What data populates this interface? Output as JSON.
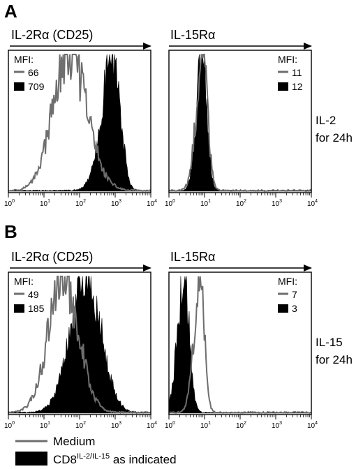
{
  "figure": {
    "legend": {
      "medium": "Medium",
      "treated_prefix": "CD8",
      "treated_sup": "IL-2/IL-15",
      "treated_suffix": " as indicated",
      "colors": {
        "medium": "#6e6e6e",
        "treated": "#000000"
      }
    }
  },
  "chart_data": [
    {
      "type": "area",
      "panel": "A",
      "marker": "IL-2Rα (CD25)",
      "condition": [
        "IL-2",
        "for 24h"
      ],
      "xscale": "log",
      "xlim": [
        1,
        10000
      ],
      "xticks": [
        "10",
        "10",
        "10",
        "10",
        "10"
      ],
      "xtick_exp": [
        "0",
        "1",
        "2",
        "3",
        "4"
      ],
      "mfi_title": "MFI:",
      "series": [
        {
          "name": "Medium",
          "mfi": "66",
          "peak_log": 1.7,
          "width_log": 0.45,
          "skew": 0.9,
          "fill": false
        },
        {
          "name": "CD8 IL-2/IL-15",
          "mfi": "709",
          "peak_log": 2.95,
          "width_log": 0.32,
          "skew": 1.6,
          "fill": true
        }
      ],
      "mfi_position": "top-left"
    },
    {
      "type": "area",
      "panel": "A",
      "marker": "IL-15Rα",
      "condition": [
        "IL-2",
        "for 24h"
      ],
      "xscale": "log",
      "xlim": [
        1,
        10000
      ],
      "xticks": [
        "10",
        "10",
        "10",
        "10",
        "10"
      ],
      "xtick_exp": [
        "0",
        "1",
        "2",
        "3",
        "4"
      ],
      "mfi_title": "MFI:",
      "series": [
        {
          "name": "Medium",
          "mfi": "11",
          "peak_log": 0.95,
          "width_log": 0.18,
          "skew": 1.3,
          "fill": false
        },
        {
          "name": "CD8 IL-2/IL-15",
          "mfi": "12",
          "peak_log": 0.93,
          "width_log": 0.16,
          "skew": 1.2,
          "fill": true
        }
      ],
      "mfi_position": "top-right"
    },
    {
      "type": "area",
      "panel": "B",
      "marker": "IL-2Rα (CD25)",
      "condition": [
        "IL-15",
        "for 24h"
      ],
      "xscale": "log",
      "xlim": [
        1,
        10000
      ],
      "xticks": [
        "10",
        "10",
        "10",
        "10",
        "10"
      ],
      "xtick_exp": [
        "0",
        "1",
        "2",
        "3",
        "4"
      ],
      "mfi_title": "MFI:",
      "series": [
        {
          "name": "Medium",
          "mfi": "49",
          "peak_log": 1.55,
          "width_log": 0.42,
          "skew": 1.0,
          "fill": false
        },
        {
          "name": "CD8 IL-2/IL-15",
          "mfi": "185",
          "peak_log": 2.2,
          "width_log": 0.45,
          "skew": 1.1,
          "fill": true
        }
      ],
      "mfi_position": "top-left"
    },
    {
      "type": "area",
      "panel": "B",
      "marker": "IL-15Rα",
      "condition": [
        "IL-15",
        "for 24h"
      ],
      "xscale": "log",
      "xlim": [
        1,
        10000
      ],
      "xticks": [
        "10",
        "10",
        "10",
        "10",
        "10"
      ],
      "xtick_exp": [
        "0",
        "1",
        "2",
        "3",
        "4"
      ],
      "mfi_title": "MFI:",
      "series": [
        {
          "name": "Medium",
          "mfi": "7",
          "peak_log": 0.88,
          "width_log": 0.17,
          "skew": 1.4,
          "fill": false
        },
        {
          "name": "CD8 IL-2/IL-15",
          "mfi": "3",
          "peak_log": 0.42,
          "width_log": 0.18,
          "skew": 1.2,
          "fill": true
        }
      ],
      "mfi_position": "top-right"
    }
  ]
}
